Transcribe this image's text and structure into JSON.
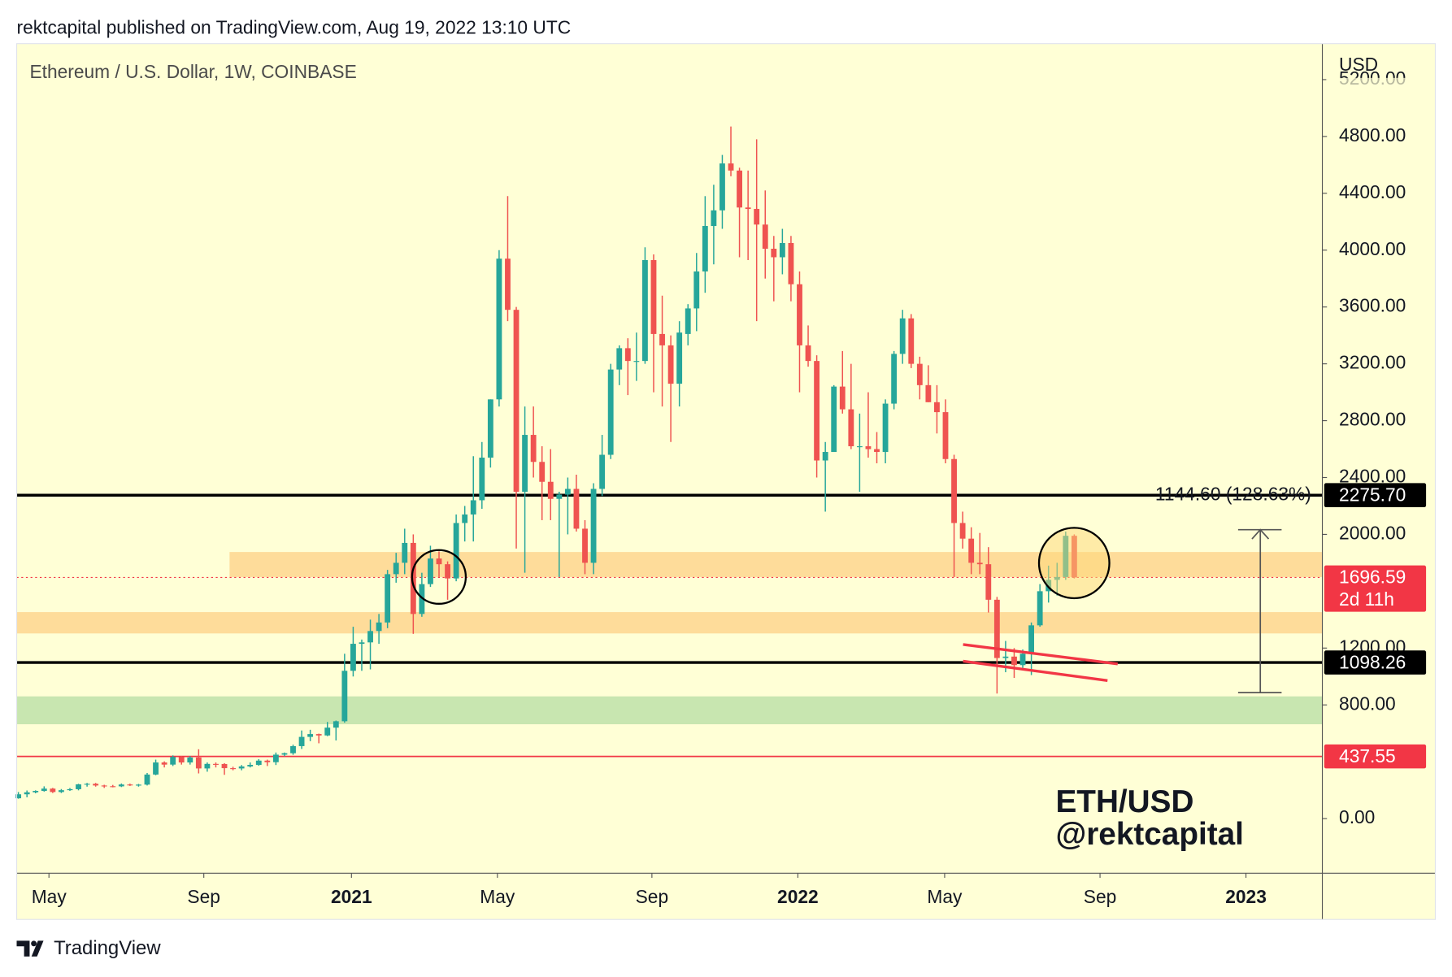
{
  "header": "rektcapital published on TradingView.com, Aug 19, 2022 13:10 UTC",
  "footer": "TradingView",
  "chart_data": {
    "type": "candlestick",
    "title": "Ethereum / U.S. Dollar, 1W, COINBASE",
    "currency": "USD",
    "watermark": [
      "ETH/USD",
      "@rektcapital"
    ],
    "measure_label": "1144.60 (128.63%)",
    "up_color": "#26a69a",
    "down_color": "#ef5350",
    "ylim": [
      -384,
      5453
    ],
    "yticks": [
      {
        "value": 0,
        "label": "0.00"
      },
      {
        "value": 800,
        "label": "800.00"
      },
      {
        "value": 1200,
        "label": "1200.00"
      },
      {
        "value": 2000,
        "label": "2000.00"
      },
      {
        "value": 2400,
        "label": "2400.00"
      },
      {
        "value": 2800,
        "label": "2800.00"
      },
      {
        "value": 3200,
        "label": "3200.00"
      },
      {
        "value": 3600,
        "label": "3600.00"
      },
      {
        "value": 4000,
        "label": "4000.00"
      },
      {
        "value": 4400,
        "label": "4400.00"
      },
      {
        "value": 4800,
        "label": "4800.00"
      },
      {
        "value": 5200,
        "label": "5200.00"
      }
    ],
    "xlim": [
      -0.2,
      151.9
    ],
    "xticks": [
      {
        "value": 3.56,
        "label": "May"
      },
      {
        "value": 21.6,
        "label": "Sep"
      },
      {
        "value": 38.8,
        "label": "2021"
      },
      {
        "value": 55.8,
        "label": "May"
      },
      {
        "value": 73.8,
        "label": "Sep"
      },
      {
        "value": 90.8,
        "label": "2022"
      },
      {
        "value": 107.9,
        "label": "May"
      },
      {
        "value": 126,
        "label": "Sep"
      },
      {
        "value": 143,
        "label": "2023"
      }
    ],
    "zones": [
      {
        "from": 1700,
        "to": 1876,
        "x0": 24.6,
        "color": "#fedc9a"
      },
      {
        "from": 1303,
        "to": 1453,
        "color": "#fedc9a"
      },
      {
        "from": 664,
        "to": 860,
        "color": "#c8e6b0"
      }
    ],
    "levels": [
      {
        "value": 2275.7,
        "label": "2275.70",
        "color": "#000000"
      },
      {
        "value": 1098.26,
        "label": "1098.26",
        "color": "#000000"
      },
      {
        "value": 437.55,
        "label": "437.55",
        "color": "#f23645"
      }
    ],
    "last_price": {
      "value": 1696.59,
      "label": "1696.59",
      "countdown": "2d 11h",
      "color": "#f23645"
    },
    "ohlc": [
      [
        143,
        187,
        140,
        171
      ],
      [
        171,
        198,
        150,
        185
      ],
      [
        185,
        199,
        178,
        195
      ],
      [
        195,
        227,
        190,
        211
      ],
      [
        211,
        216,
        180,
        187
      ],
      [
        187,
        208,
        180,
        200
      ],
      [
        200,
        215,
        195,
        207
      ],
      [
        207,
        245,
        199,
        241
      ],
      [
        241,
        251,
        225,
        245
      ],
      [
        245,
        251,
        225,
        233
      ],
      [
        233,
        238,
        216,
        228
      ],
      [
        228,
        237,
        220,
        227
      ],
      [
        227,
        247,
        222,
        240
      ],
      [
        240,
        246,
        230,
        238
      ],
      [
        238,
        244,
        225,
        239
      ],
      [
        239,
        321,
        233,
        310
      ],
      [
        310,
        415,
        305,
        395
      ],
      [
        395,
        403,
        360,
        380
      ],
      [
        380,
        445,
        370,
        434
      ],
      [
        434,
        440,
        380,
        395
      ],
      [
        395,
        440,
        380,
        430
      ],
      [
        430,
        488,
        318,
        353
      ],
      [
        353,
        395,
        330,
        385
      ],
      [
        385,
        395,
        360,
        384
      ],
      [
        384,
        390,
        308,
        355
      ],
      [
        355,
        365,
        340,
        353
      ],
      [
        353,
        377,
        340,
        367
      ],
      [
        367,
        395,
        360,
        378
      ],
      [
        378,
        418,
        372,
        408
      ],
      [
        408,
        415,
        370,
        397
      ],
      [
        397,
        465,
        377,
        450
      ],
      [
        450,
        465,
        440,
        460
      ],
      [
        460,
        520,
        449,
        510
      ],
      [
        510,
        620,
        490,
        575
      ],
      [
        575,
        625,
        545,
        595
      ],
      [
        595,
        598,
        530,
        585
      ],
      [
        585,
        680,
        580,
        640
      ],
      [
        640,
        690,
        550,
        685
      ],
      [
        685,
        1160,
        675,
        1040
      ],
      [
        1040,
        1350,
        1000,
        1230
      ],
      [
        1230,
        1260,
        1040,
        1240
      ],
      [
        1240,
        1400,
        1050,
        1320
      ],
      [
        1320,
        1440,
        1230,
        1380
      ],
      [
        1380,
        1750,
        1340,
        1720
      ],
      [
        1720,
        1870,
        1660,
        1800
      ],
      [
        1800,
        2040,
        1720,
        1940
      ],
      [
        1940,
        2000,
        1300,
        1440
      ],
      [
        1440,
        1730,
        1420,
        1650
      ],
      [
        1650,
        1920,
        1630,
        1830
      ],
      [
        1830,
        1880,
        1700,
        1790
      ],
      [
        1790,
        1810,
        1540,
        1690
      ],
      [
        1690,
        2140,
        1670,
        2080
      ],
      [
        2080,
        2200,
        1950,
        2140
      ],
      [
        2140,
        2550,
        1950,
        2240
      ],
      [
        2240,
        2650,
        2180,
        2540
      ],
      [
        2540,
        2950,
        2470,
        2950
      ],
      [
        2950,
        4000,
        2900,
        3940
      ],
      [
        3940,
        4380,
        3500,
        3580
      ],
      [
        3580,
        3600,
        1900,
        2300
      ],
      [
        2300,
        2900,
        1730,
        2700
      ],
      [
        2700,
        2900,
        2400,
        2510
      ],
      [
        2510,
        2620,
        2100,
        2370
      ],
      [
        2370,
        2600,
        2100,
        2250
      ],
      [
        2250,
        2300,
        1700,
        2280
      ],
      [
        2280,
        2400,
        2000,
        2320
      ],
      [
        2320,
        2420,
        2020,
        2040
      ],
      [
        2040,
        2100,
        1720,
        1800
      ],
      [
        1800,
        2360,
        1720,
        2320
      ],
      [
        2320,
        2700,
        2270,
        2560
      ],
      [
        2560,
        3200,
        2530,
        3160
      ],
      [
        3160,
        3330,
        3050,
        3310
      ],
      [
        3310,
        3380,
        2980,
        3220
      ],
      [
        3220,
        3420,
        3080,
        3220
      ],
      [
        3220,
        4020,
        3200,
        3930
      ],
      [
        3930,
        3970,
        3000,
        3410
      ],
      [
        3410,
        3680,
        2900,
        3330
      ],
      [
        3330,
        3400,
        2650,
        3060
      ],
      [
        3060,
        3500,
        2900,
        3420
      ],
      [
        3410,
        3620,
        3330,
        3590
      ],
      [
        3590,
        3980,
        3430,
        3850
      ],
      [
        3850,
        4380,
        3700,
        4170
      ],
      [
        4170,
        4460,
        3900,
        4280
      ],
      [
        4280,
        4670,
        4150,
        4610
      ],
      [
        4610,
        4870,
        4520,
        4560
      ],
      [
        4560,
        4580,
        3950,
        4300
      ],
      [
        4300,
        4560,
        3930,
        4290
      ],
      [
        4290,
        4780,
        3500,
        4180
      ],
      [
        4180,
        4420,
        3800,
        4010
      ],
      [
        4010,
        4100,
        3640,
        3950
      ],
      [
        3950,
        4150,
        3830,
        4050
      ],
      [
        4050,
        4100,
        3640,
        3760
      ],
      [
        3760,
        3850,
        3000,
        3330
      ],
      [
        3330,
        3470,
        3180,
        3220
      ],
      [
        3220,
        3260,
        2400,
        2520
      ],
      [
        2520,
        2650,
        2160,
        2580
      ],
      [
        2580,
        3050,
        2580,
        3040
      ],
      [
        3040,
        3290,
        2850,
        2880
      ],
      [
        2880,
        3200,
        2600,
        2620
      ],
      [
        2620,
        2850,
        2300,
        2620
      ],
      [
        2620,
        3000,
        2540,
        2600
      ],
      [
        2600,
        2720,
        2500,
        2580
      ],
      [
        2580,
        2950,
        2500,
        2920
      ],
      [
        2920,
        3290,
        2880,
        3270
      ],
      [
        3270,
        3580,
        3200,
        3520
      ],
      [
        3520,
        3550,
        3170,
        3200
      ],
      [
        3200,
        3250,
        2950,
        3050
      ],
      [
        3050,
        3190,
        2930,
        2930
      ],
      [
        2930,
        3050,
        2710,
        2860
      ],
      [
        2860,
        2950,
        2500,
        2530
      ],
      [
        2530,
        2560,
        1700,
        2080
      ],
      [
        2080,
        2160,
        1900,
        1970
      ],
      [
        1970,
        2050,
        1720,
        1800
      ],
      [
        1800,
        2010,
        1720,
        1790
      ],
      [
        1790,
        1910,
        1450,
        1540
      ],
      [
        1540,
        1560,
        880,
        1130
      ],
      [
        1130,
        1250,
        1030,
        1140
      ],
      [
        1140,
        1200,
        990,
        1080
      ],
      [
        1080,
        1190,
        1060,
        1160
      ],
      [
        1160,
        1380,
        1010,
        1360
      ],
      [
        1360,
        1650,
        1350,
        1600
      ],
      [
        1600,
        1780,
        1520,
        1680
      ],
      [
        1680,
        1800,
        1570,
        1700
      ],
      [
        1700,
        2020,
        1680,
        1990
      ],
      [
        1990,
        2000,
        1690,
        1697
      ]
    ]
  }
}
